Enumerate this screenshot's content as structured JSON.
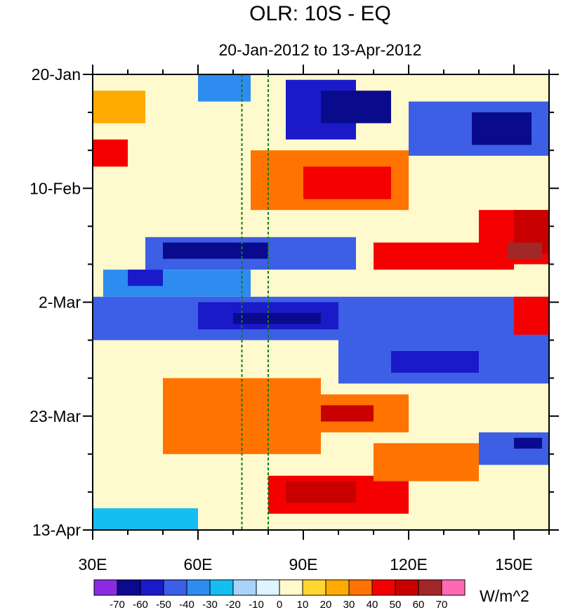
{
  "chart_data": {
    "type": "heatmap",
    "title": "OLR: 10S - EQ",
    "subtitle": "20-Jan-2012 to 13-Apr-2012",
    "x_axis": {
      "quantity": "longitude (degrees E)",
      "range": [
        30,
        160
      ],
      "ticks": [
        30,
        60,
        90,
        120,
        150
      ],
      "tick_labels": [
        "30E",
        "60E",
        "90E",
        "120E",
        "150E"
      ],
      "minor_step": 10
    },
    "y_axis": {
      "quantity": "date (days since 20-Jan-2012)",
      "range": [
        0,
        84
      ],
      "reversed": true,
      "ticks": [
        0,
        21,
        42,
        63,
        84
      ],
      "tick_labels": [
        "20-Jan",
        "10-Feb",
        "2-Mar",
        "23-Mar",
        "13-Apr"
      ],
      "minor_step": 7
    },
    "reference_lines": [
      {
        "orientation": "vertical",
        "x": 72.5,
        "style": "dashed",
        "color": "#1a7a1a"
      },
      {
        "orientation": "vertical",
        "x": 80,
        "style": "dashed",
        "color": "#1a7a1a"
      }
    ],
    "colorbar": {
      "units": "W/m^2",
      "levels": [
        -70,
        -60,
        -50,
        -40,
        -30,
        -20,
        -10,
        0,
        10,
        20,
        30,
        40,
        50,
        60,
        70
      ],
      "level_labels": [
        "-70",
        "-60",
        "-50",
        "-40",
        "-30",
        "-20",
        "-10",
        "0",
        "10",
        "20",
        "30",
        "40",
        "50",
        "60",
        "70"
      ],
      "colors": [
        "#8a2be2",
        "#0a0a8c",
        "#1a1ac8",
        "#3c5fe6",
        "#2e8cf0",
        "#14bef0",
        "#aad2fa",
        "#dcf5ff",
        "#fffacd",
        "#ffd732",
        "#ffaa00",
        "#ff7300",
        "#f50000",
        "#c80000",
        "#a02828",
        "#ff69b4"
      ]
    },
    "regions": [
      {
        "lon": [
          30,
          160
        ],
        "day": [
          0,
          84
        ],
        "value": 5
      },
      {
        "lon": [
          60,
          75
        ],
        "day": [
          0,
          5
        ],
        "value": -35
      },
      {
        "lon": [
          85,
          105
        ],
        "day": [
          1,
          12
        ],
        "value": -55
      },
      {
        "lon": [
          95,
          115
        ],
        "day": [
          3,
          9
        ],
        "value": -70
      },
      {
        "lon": [
          120,
          160
        ],
        "day": [
          5,
          15
        ],
        "value": -45
      },
      {
        "lon": [
          138,
          155
        ],
        "day": [
          7,
          13
        ],
        "value": -65
      },
      {
        "lon": [
          30,
          45
        ],
        "day": [
          3,
          9
        ],
        "value": 25
      },
      {
        "lon": [
          30,
          40
        ],
        "day": [
          12,
          17
        ],
        "value": 45
      },
      {
        "lon": [
          75,
          120
        ],
        "day": [
          14,
          25
        ],
        "value": 35
      },
      {
        "lon": [
          90,
          115
        ],
        "day": [
          17,
          23
        ],
        "value": 45
      },
      {
        "lon": [
          140,
          160
        ],
        "day": [
          25,
          35
        ],
        "value": 45
      },
      {
        "lon": [
          150,
          160
        ],
        "day": [
          25,
          33
        ],
        "value": 55
      },
      {
        "lon": [
          110,
          150
        ],
        "day": [
          31,
          36
        ],
        "value": 45
      },
      {
        "lon": [
          148,
          158
        ],
        "day": [
          31,
          34
        ],
        "value": 60
      },
      {
        "lon": [
          45,
          105
        ],
        "day": [
          30,
          36
        ],
        "value": -45
      },
      {
        "lon": [
          50,
          80
        ],
        "day": [
          31,
          34
        ],
        "value": -65
      },
      {
        "lon": [
          33,
          75
        ],
        "day": [
          36,
          41
        ],
        "value": -35
      },
      {
        "lon": [
          40,
          50
        ],
        "day": [
          36,
          39
        ],
        "value": -60
      },
      {
        "lon": [
          30,
          160
        ],
        "day": [
          41,
          49
        ],
        "value": -45
      },
      {
        "lon": [
          60,
          100
        ],
        "day": [
          42,
          47
        ],
        "value": -60
      },
      {
        "lon": [
          70,
          95
        ],
        "day": [
          44,
          46
        ],
        "value": -70
      },
      {
        "lon": [
          100,
          160
        ],
        "day": [
          48,
          57
        ],
        "value": -45
      },
      {
        "lon": [
          115,
          140
        ],
        "day": [
          51,
          55
        ],
        "value": -60
      },
      {
        "lon": [
          150,
          160
        ],
        "day": [
          41,
          48
        ],
        "value": 40
      },
      {
        "lon": [
          50,
          95
        ],
        "day": [
          56,
          70
        ],
        "value": 30
      },
      {
        "lon": [
          90,
          120
        ],
        "day": [
          59,
          66
        ],
        "value": 35
      },
      {
        "lon": [
          95,
          110
        ],
        "day": [
          61,
          64
        ],
        "value": 55
      },
      {
        "lon": [
          140,
          160
        ],
        "day": [
          66,
          72
        ],
        "value": -45
      },
      {
        "lon": [
          150,
          158
        ],
        "day": [
          67,
          69
        ],
        "value": -65
      },
      {
        "lon": [
          80,
          120
        ],
        "day": [
          74,
          81
        ],
        "value": 40
      },
      {
        "lon": [
          85,
          105
        ],
        "day": [
          75,
          79
        ],
        "value": 50
      },
      {
        "lon": [
          110,
          140
        ],
        "day": [
          68,
          75
        ],
        "value": 30
      },
      {
        "lon": [
          30,
          60
        ],
        "day": [
          80,
          84
        ],
        "value": -25
      }
    ]
  }
}
